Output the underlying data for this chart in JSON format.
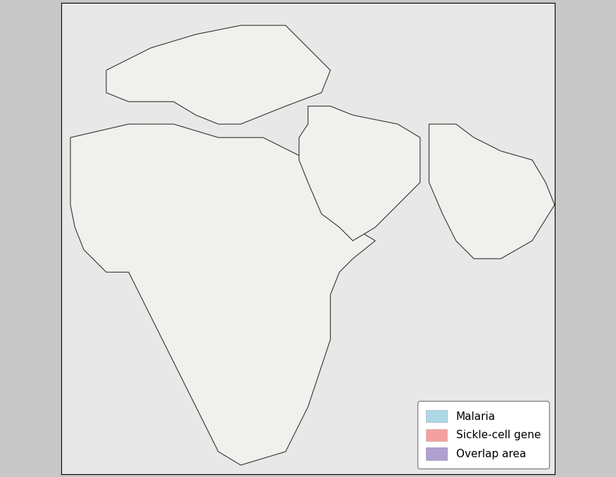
{
  "title": "",
  "background_color": "#d8d8d8",
  "map_background": "#e8e8e8",
  "border_color": "#333333",
  "malaria_color": "#add8e6",
  "sickle_color": "#f4a0a0",
  "overlap_color": "#b0a0d0",
  "legend_labels": [
    "Malaria",
    "Sickle-cell gene",
    "Overlap area"
  ],
  "legend_colors": [
    "#add8e6",
    "#f4a0a0",
    "#b0a0d0"
  ],
  "figsize": [
    8.75,
    6.77
  ],
  "dpi": 100
}
